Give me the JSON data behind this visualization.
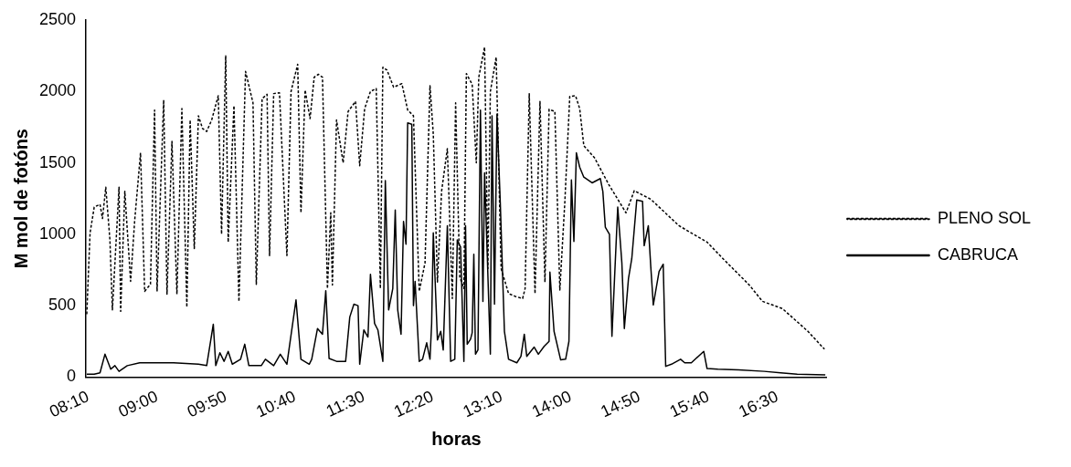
{
  "chart_data": {
    "type": "line",
    "xlabel": "horas",
    "ylabel": "M mol de fotóns",
    "xlim": [
      8.14,
      17.1
    ],
    "ylim": [
      0,
      2500
    ],
    "yticks": [
      0,
      500,
      1000,
      1500,
      2000,
      2500
    ],
    "xticks": [
      {
        "value": 8.1667,
        "label": "08:10"
      },
      {
        "value": 9,
        "label": "09:00"
      },
      {
        "value": 9.8333,
        "label": "09:50"
      },
      {
        "value": 10.6667,
        "label": "10:40"
      },
      {
        "value": 11.5,
        "label": "11:30"
      },
      {
        "value": 12.3333,
        "label": "12:20"
      },
      {
        "value": 13.1667,
        "label": "13:10"
      },
      {
        "value": 14,
        "label": "14:00"
      },
      {
        "value": 14.8333,
        "label": "14:50"
      },
      {
        "value": 15.6667,
        "label": "15:40"
      },
      {
        "value": 16.5,
        "label": "16:30"
      }
    ],
    "grid": false,
    "legend": "right",
    "marker": "none",
    "series": [
      {
        "name": "PLENO SOL",
        "color": "#000000",
        "line_style": "dashed",
        "x": [
          8.15,
          8.19,
          8.24,
          8.31,
          8.34,
          8.38,
          8.43,
          8.46,
          8.54,
          8.56,
          8.61,
          8.68,
          8.73,
          8.8,
          8.85,
          8.92,
          8.97,
          9.0,
          9.08,
          9.12,
          9.18,
          9.24,
          9.3,
          9.36,
          9.4,
          9.45,
          9.5,
          9.55,
          9.6,
          9.66,
          9.74,
          9.78,
          9.83,
          9.86,
          9.93,
          9.99,
          10.07,
          10.16,
          10.2,
          10.27,
          10.33,
          10.36,
          10.41,
          10.48,
          10.57,
          10.62,
          10.7,
          10.74,
          10.79,
          10.85,
          10.9,
          10.95,
          11.0,
          11.06,
          11.1,
          11.12,
          11.17,
          11.25,
          11.31,
          11.4,
          11.45,
          11.51,
          11.58,
          11.65,
          11.7,
          11.73,
          11.78,
          11.86,
          11.96,
          12.03,
          12.1,
          12.17,
          12.24,
          12.3,
          12.34,
          12.39,
          12.44,
          12.51,
          12.57,
          12.61,
          12.66,
          12.71,
          12.74,
          12.81,
          12.86,
          12.89,
          12.96,
          13.0,
          13.03,
          13.1,
          13.16,
          13.25,
          13.33,
          13.42,
          13.45,
          13.5,
          13.57,
          13.63,
          13.69,
          13.74,
          13.81,
          13.87,
          13.93,
          13.99,
          14.06,
          14.11,
          14.16,
          14.29,
          14.46,
          14.67,
          14.77,
          14.97,
          15.31,
          15.65,
          15.85,
          16.16,
          16.32,
          16.56,
          16.87,
          17.07
        ],
        "values": [
          440,
          1010,
          1190,
          1210,
          1110,
          1330,
          960,
          470,
          1330,
          460,
          1300,
          670,
          1100,
          1570,
          600,
          650,
          1870,
          600,
          1940,
          580,
          1650,
          580,
          1880,
          490,
          1800,
          900,
          1830,
          1740,
          1720,
          1800,
          1970,
          1000,
          2250,
          945,
          1900,
          530,
          2140,
          1920,
          650,
          1950,
          1980,
          850,
          1985,
          1990,
          850,
          2000,
          2190,
          1150,
          2010,
          1810,
          2100,
          2120,
          2100,
          620,
          1150,
          645,
          1800,
          1500,
          1860,
          1930,
          1480,
          1880,
          2000,
          2020,
          620,
          2170,
          2150,
          2030,
          2055,
          1870,
          1830,
          600,
          800,
          2040,
          1700,
          665,
          1300,
          1600,
          550,
          1920,
          700,
          620,
          2125,
          2050,
          1500,
          2100,
          2310,
          760,
          2000,
          2240,
          760,
          585,
          565,
          550,
          620,
          1985,
          585,
          1930,
          665,
          1875,
          1860,
          610,
          1220,
          1965,
          1970,
          1880,
          1620,
          1535,
          1350,
          1150,
          1305,
          1245,
          1060,
          945,
          825,
          645,
          530,
          480,
          320,
          195
        ]
      },
      {
        "name": "CABRUCA",
        "color": "#000000",
        "line_style": "solid",
        "x": [
          8.15,
          8.24,
          8.31,
          8.37,
          8.44,
          8.49,
          8.54,
          8.64,
          8.79,
          9.2,
          9.5,
          9.6,
          9.68,
          9.71,
          9.76,
          9.81,
          9.86,
          9.91,
          10.01,
          10.06,
          10.11,
          10.26,
          10.31,
          10.41,
          10.49,
          10.57,
          10.68,
          10.74,
          10.84,
          10.87,
          10.94,
          11.0,
          11.04,
          11.08,
          11.17,
          11.28,
          11.33,
          11.38,
          11.43,
          11.45,
          11.5,
          11.55,
          11.58,
          11.63,
          11.67,
          11.73,
          11.76,
          11.8,
          11.85,
          11.88,
          11.91,
          11.95,
          11.98,
          12.01,
          12.03,
          12.08,
          12.1,
          12.12,
          12.17,
          12.21,
          12.26,
          12.3,
          12.32,
          12.34,
          12.39,
          12.43,
          12.46,
          12.51,
          12.55,
          12.6,
          12.63,
          12.67,
          12.71,
          12.73,
          12.75,
          12.79,
          12.81,
          12.83,
          12.85,
          12.88,
          12.91,
          12.94,
          12.96,
          12.99,
          13.03,
          13.05,
          13.08,
          13.11,
          13.15,
          13.2,
          13.25,
          13.35,
          13.4,
          13.44,
          13.47,
          13.56,
          13.61,
          13.68,
          13.74,
          13.75,
          13.8,
          13.88,
          13.94,
          13.98,
          14.01,
          14.04,
          14.07,
          14.11,
          14.16,
          14.26,
          14.36,
          14.39,
          14.42,
          14.47,
          14.5,
          14.57,
          14.62,
          14.65,
          14.7,
          14.74,
          14.8,
          14.87,
          14.89,
          14.94,
          14.97,
          15.0,
          15.07,
          15.12,
          15.15,
          15.22,
          15.33,
          15.38,
          15.46,
          15.61,
          15.65,
          15.78,
          16.03,
          16.34,
          16.54,
          16.74,
          17.08
        ],
        "values": [
          20,
          20,
          30,
          160,
          55,
          80,
          40,
          80,
          100,
          100,
          90,
          80,
          370,
          80,
          170,
          110,
          180,
          90,
          125,
          230,
          80,
          80,
          125,
          80,
          160,
          90,
          540,
          125,
          90,
          125,
          340,
          300,
          605,
          130,
          110,
          110,
          420,
          510,
          500,
          90,
          330,
          280,
          720,
          375,
          330,
          110,
          1375,
          470,
          620,
          1170,
          470,
          300,
          1090,
          930,
          1780,
          1770,
          500,
          670,
          110,
          125,
          240,
          125,
          375,
          1010,
          260,
          320,
          190,
          1060,
          110,
          125,
          960,
          910,
          110,
          1060,
          230,
          265,
          310,
          860,
          160,
          190,
          1870,
          530,
          1430,
          900,
          160,
          1830,
          510,
          1840,
          1220,
          320,
          125,
          100,
          145,
          300,
          145,
          210,
          160,
          215,
          250,
          735,
          320,
          120,
          125,
          250,
          1380,
          950,
          1570,
          1470,
          1400,
          1360,
          1390,
          1300,
          1050,
          1000,
          285,
          1190,
          800,
          340,
          690,
          830,
          1240,
          1230,
          920,
          1060,
          770,
          505,
          740,
          790,
          75,
          90,
          125,
          100,
          100,
          180,
          60,
          55,
          50,
          40,
          30,
          20,
          15
        ]
      }
    ]
  }
}
